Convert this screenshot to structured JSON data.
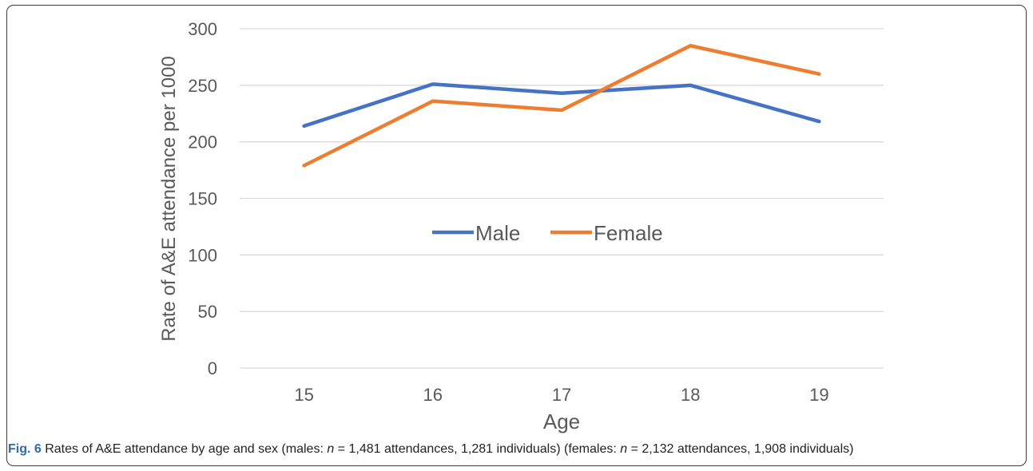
{
  "chart_data": {
    "type": "line",
    "title": "",
    "xlabel": "Age",
    "ylabel": "Rate of A&E attendance per 1000",
    "categories": [
      "15",
      "16",
      "17",
      "18",
      "19"
    ],
    "ylim": [
      0,
      300
    ],
    "yticks": [
      0,
      50,
      100,
      150,
      200,
      250,
      300
    ],
    "grid": true,
    "legend_position": "center",
    "series": [
      {
        "name": "Male",
        "color": "#4472c4",
        "values": [
          214,
          251,
          243,
          250,
          218
        ]
      },
      {
        "name": "Female",
        "color": "#ed7d31",
        "values": [
          179,
          236,
          228,
          285,
          260
        ]
      }
    ]
  },
  "caption": {
    "label": "Fig. 6",
    "text_1": " Rates of A&E attendance by age and sex (males: ",
    "n_symbol_1": "n",
    "text_2": " = 1,481 attendances, 1,281 individuals) (females: ",
    "n_symbol_2": "n",
    "text_3": " = 2,132 attendances, 1,908 individuals)"
  }
}
